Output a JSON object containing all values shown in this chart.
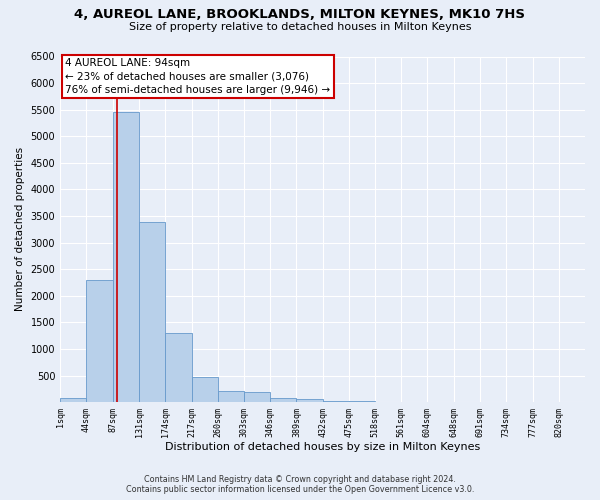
{
  "title": "4, AUREOL LANE, BROOKLANDS, MILTON KEYNES, MK10 7HS",
  "subtitle": "Size of property relative to detached houses in Milton Keynes",
  "xlabel": "Distribution of detached houses by size in Milton Keynes",
  "ylabel": "Number of detached properties",
  "footer_line1": "Contains HM Land Registry data © Crown copyright and database right 2024.",
  "footer_line2": "Contains public sector information licensed under the Open Government Licence v3.0.",
  "annotation_title": "4 AUREOL LANE: 94sqm",
  "annotation_line1": "← 23% of detached houses are smaller (3,076)",
  "annotation_line2": "76% of semi-detached houses are larger (9,946) →",
  "property_size": 94,
  "bar_edges": [
    1,
    44,
    87,
    131,
    174,
    217,
    260,
    303,
    346,
    389,
    432,
    475,
    518,
    561,
    604,
    648,
    691,
    734,
    777,
    820,
    863
  ],
  "bar_heights": [
    75,
    2290,
    5460,
    3390,
    1300,
    480,
    200,
    195,
    80,
    65,
    20,
    15,
    10,
    5,
    3,
    2,
    2,
    1,
    1,
    1
  ],
  "bar_color": "#b8d0ea",
  "bar_edge_color": "#6699cc",
  "vertical_line_color": "#cc0000",
  "annotation_box_edge_color": "#cc0000",
  "annotation_box_facecolor": "#ffffff",
  "background_color": "#e8eef8",
  "plot_background": "#e8eef8",
  "grid_color": "#ffffff",
  "ylim": [
    0,
    6500
  ],
  "yticks": [
    0,
    500,
    1000,
    1500,
    2000,
    2500,
    3000,
    3500,
    4000,
    4500,
    5000,
    5500,
    6000,
    6500
  ]
}
